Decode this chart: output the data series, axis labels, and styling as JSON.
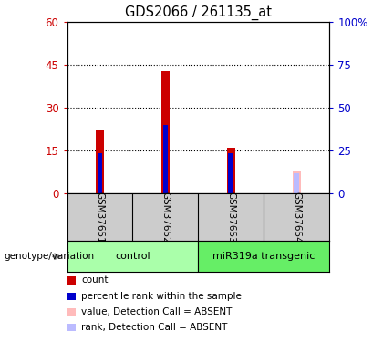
{
  "title": "GDS2066 / 261135_at",
  "samples": [
    "GSM37651",
    "GSM37652",
    "GSM37653",
    "GSM37654"
  ],
  "red_bars": [
    22,
    43,
    16,
    0
  ],
  "blue_bars": [
    14,
    24,
    14,
    0
  ],
  "pink_bars": [
    0,
    0,
    0,
    8
  ],
  "lightblue_bars": [
    0,
    0,
    0,
    7
  ],
  "ylim_left": [
    0,
    60
  ],
  "ylim_right": [
    0,
    100
  ],
  "yticks_left": [
    0,
    15,
    30,
    45,
    60
  ],
  "yticks_right": [
    0,
    25,
    50,
    75,
    100
  ],
  "ytick_labels_right": [
    "0",
    "25",
    "50",
    "75",
    "100%"
  ],
  "left_axis_color": "#cc0000",
  "right_axis_color": "#0000cc",
  "red_bar_width": 0.12,
  "blue_bar_width": 0.08,
  "group_colors": [
    "#aaffaa",
    "#66ee66"
  ],
  "group_names": [
    "control",
    "miR319a transgenic"
  ],
  "group_label": "genotype/variation",
  "legend_labels": [
    "count",
    "percentile rank within the sample",
    "value, Detection Call = ABSENT",
    "rank, Detection Call = ABSENT"
  ],
  "legend_colors": [
    "#cc0000",
    "#0000cc",
    "#ffbbbb",
    "#bbbbff"
  ]
}
